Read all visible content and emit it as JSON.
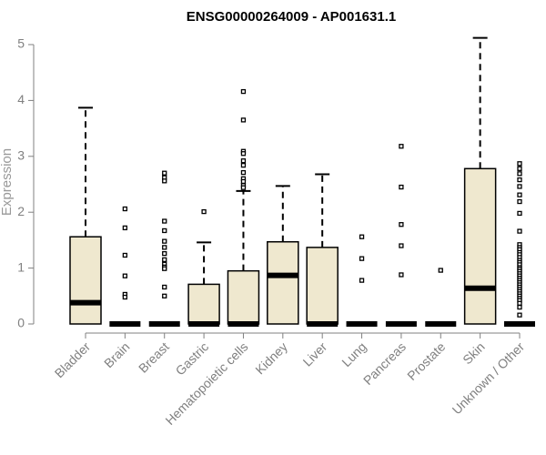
{
  "chart_data": {
    "type": "boxplot",
    "title": "ENSG00000264009 - AP001631.1",
    "ylabel": "Expression",
    "xlabel": "",
    "ylim": [
      0,
      5.2
    ],
    "yticks": [
      0,
      1,
      2,
      3,
      4,
      5
    ],
    "grid": false,
    "colors": {
      "box_fill": "#efe8cf",
      "stroke": "#000000",
      "axis": "#808080"
    },
    "categories": [
      "Bladder",
      "Brain",
      "Breast",
      "Gastric",
      "Hematopoietic cells",
      "Kidney",
      "Liver",
      "Lung",
      "Pancreas",
      "Prostate",
      "Skin",
      "Unknown / Other"
    ],
    "boxes": [
      {
        "name": "Bladder",
        "q1": 0,
        "median": 0.38,
        "q3": 1.56,
        "whisker_low": 0,
        "whisker_high": 3.87,
        "outliers": []
      },
      {
        "name": "Brain",
        "q1": 0,
        "median": 0,
        "q3": 0,
        "whisker_low": 0,
        "whisker_high": 0,
        "outliers": [
          2.06,
          1.72,
          1.23,
          0.86,
          0.53,
          0.48
        ]
      },
      {
        "name": "Breast",
        "q1": 0,
        "median": 0,
        "q3": 0,
        "whisker_low": 0,
        "whisker_high": 0,
        "outliers": [
          2.7,
          2.62,
          2.56,
          1.84,
          1.67,
          1.48,
          1.37,
          1.26,
          1.15,
          1.07,
          1.02,
          0.99,
          0.66,
          0.5
        ]
      },
      {
        "name": "Gastric",
        "q1": 0,
        "median": 0,
        "q3": 0.71,
        "whisker_low": 0,
        "whisker_high": 1.46,
        "outliers": [
          2.01
        ]
      },
      {
        "name": "Hematopoietic cells",
        "q1": 0,
        "median": 0,
        "q3": 0.95,
        "whisker_low": 0,
        "whisker_high": 2.38,
        "outliers": [
          4.16,
          3.65,
          3.09,
          3.05,
          2.92,
          2.84,
          2.71,
          2.6,
          2.55,
          2.48,
          2.44
        ]
      },
      {
        "name": "Kidney",
        "q1": 0,
        "median": 0.87,
        "q3": 1.47,
        "whisker_low": 0,
        "whisker_high": 2.47,
        "outliers": []
      },
      {
        "name": "Liver",
        "q1": 0,
        "median": 0,
        "q3": 1.37,
        "whisker_low": 0,
        "whisker_high": 2.68,
        "outliers": []
      },
      {
        "name": "Lung",
        "q1": 0,
        "median": 0,
        "q3": 0,
        "whisker_low": 0,
        "whisker_high": 0,
        "outliers": [
          1.56,
          1.17,
          0.78
        ]
      },
      {
        "name": "Pancreas",
        "q1": 0,
        "median": 0,
        "q3": 0,
        "whisker_low": 0,
        "whisker_high": 0,
        "outliers": [
          3.18,
          2.45,
          1.78,
          1.4,
          0.88
        ]
      },
      {
        "name": "Prostate",
        "q1": 0,
        "median": 0,
        "q3": 0,
        "whisker_low": 0,
        "whisker_high": 0,
        "outliers": [
          0.96
        ]
      },
      {
        "name": "Skin",
        "q1": 0,
        "median": 0.64,
        "q3": 2.78,
        "whisker_low": 0,
        "whisker_high": 5.12,
        "outliers": []
      },
      {
        "name": "Unknown / Other",
        "q1": 0,
        "median": 0,
        "q3": 0,
        "whisker_low": 0,
        "whisker_high": 0,
        "outliers": [
          2.87,
          2.78,
          2.69,
          2.58,
          2.46,
          2.31,
          2.19,
          1.98,
          1.66,
          1.42,
          1.37,
          1.33,
          1.28,
          1.24,
          1.19,
          1.14,
          1.1,
          1.06,
          1.01,
          0.98,
          0.94,
          0.9,
          0.86,
          0.82,
          0.78,
          0.74,
          0.7,
          0.66,
          0.62,
          0.58,
          0.54,
          0.5,
          0.46,
          0.42,
          0.37,
          0.3,
          0.16
        ]
      }
    ]
  }
}
